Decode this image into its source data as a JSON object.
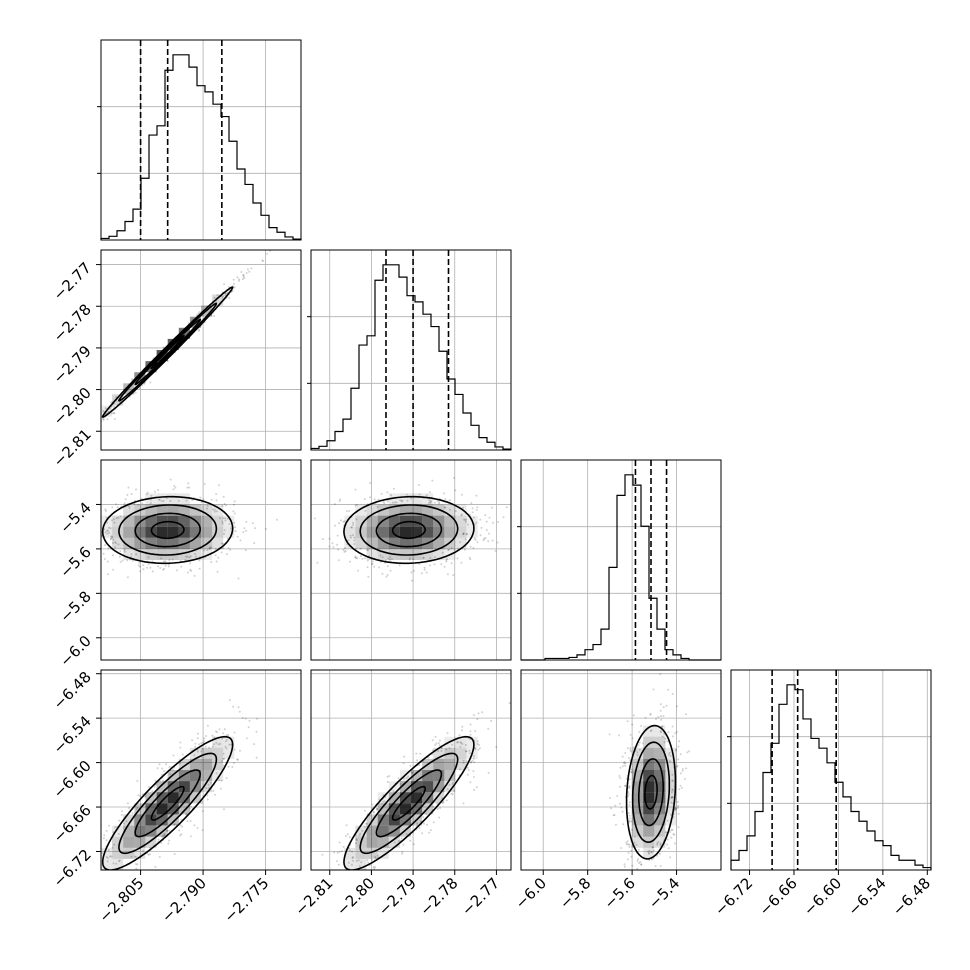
{
  "chart_data": {
    "type": "corner",
    "parameters": [
      {
        "index": 0,
        "range": [
          -2.8145,
          -2.7665
        ],
        "ticks": [
          -2.805,
          -2.79,
          -2.775
        ],
        "tick_labels": [
          "−2.805",
          "−2.790",
          "−2.775"
        ],
        "quantiles": [
          -2.805,
          -2.7985,
          -2.7855
        ],
        "histogram": [
          0.5,
          1.2,
          3,
          6,
          10,
          20,
          34,
          37,
          55,
          60,
          60,
          56,
          50,
          48,
          44,
          40,
          32,
          23,
          18,
          12,
          8,
          4,
          2.5,
          1,
          0.3
        ]
      },
      {
        "index": 1,
        "range": [
          -2.8145,
          -2.7665
        ],
        "ticks": [
          -2.81,
          -2.8,
          -2.79,
          -2.78,
          -2.77
        ],
        "tick_labels": [
          "−2.81",
          "−2.80",
          "−2.79",
          "−2.78",
          "−2.77"
        ],
        "quantiles": [
          -2.7965,
          -2.79,
          -2.7815
        ],
        "histogram": [
          0.5,
          1.2,
          3,
          6,
          10,
          20,
          34,
          37,
          55,
          60,
          60,
          56,
          50,
          48,
          44,
          40,
          32,
          23,
          18,
          12,
          8,
          4,
          2.5,
          1,
          0.3
        ]
      },
      {
        "index": 2,
        "range": [
          -6.1,
          -5.2
        ],
        "ticks": [
          -6.0,
          -5.8,
          -5.6,
          -5.4
        ],
        "tick_labels": [
          "−6.0",
          "−5.8",
          "−5.6",
          "−5.4"
        ],
        "quantiles": [
          -5.585,
          -5.515,
          -5.445
        ],
        "histogram": [
          0,
          0,
          0,
          0.3,
          0.3,
          0.3,
          0.5,
          1,
          2,
          3,
          6,
          18,
          32,
          36,
          34,
          26,
          12,
          6,
          2,
          1,
          0.3,
          0,
          0,
          0,
          0
        ]
      },
      {
        "index": 3,
        "range": [
          -6.745,
          -6.475
        ],
        "ticks": [
          -6.72,
          -6.66,
          -6.6,
          -6.54,
          -6.48
        ],
        "tick_labels": [
          "−6.72",
          "−6.66",
          "−6.60",
          "−6.54",
          "−6.48"
        ],
        "quantiles": [
          -6.6895,
          -6.655,
          -6.603
        ],
        "histogram": [
          2,
          4,
          7,
          12,
          20,
          26,
          34,
          38,
          37,
          31,
          27,
          25,
          22,
          18,
          15,
          12,
          10,
          8,
          6,
          5,
          3,
          2,
          2,
          1,
          0.5
        ]
      }
    ],
    "pairs": [
      {
        "row": 1,
        "col": 0,
        "mean": [
          -2.7985,
          -2.791
        ],
        "sd": [
          0.0078,
          0.0078
        ],
        "rho": 0.995,
        "contour_sigmas": [
          0.5,
          1.0,
          1.5,
          2.0
        ]
      },
      {
        "row": 2,
        "col": 0,
        "mean": [
          -2.7985,
          -5.515
        ],
        "sd": [
          0.0078,
          0.075
        ],
        "rho": 0.05,
        "contour_sigmas": [
          0.5,
          1.0,
          1.5,
          2.0
        ]
      },
      {
        "row": 2,
        "col": 1,
        "mean": [
          -2.791,
          -5.515
        ],
        "sd": [
          0.0078,
          0.075
        ],
        "rho": 0.05,
        "contour_sigmas": [
          0.5,
          1.0,
          1.5,
          2.0
        ]
      },
      {
        "row": 3,
        "col": 0,
        "mean": [
          -2.7985,
          -6.655
        ],
        "sd": [
          0.0078,
          0.045
        ],
        "rho": 0.88,
        "contour_sigmas": [
          0.5,
          1.0,
          1.5,
          2.0
        ]
      },
      {
        "row": 3,
        "col": 1,
        "mean": [
          -2.791,
          -6.655
        ],
        "sd": [
          0.0078,
          0.045
        ],
        "rho": 0.88,
        "contour_sigmas": [
          0.5,
          1.0,
          1.5,
          2.0
        ]
      },
      {
        "row": 3,
        "col": 2,
        "mean": [
          -5.515,
          -6.64
        ],
        "sd": [
          0.055,
          0.045
        ],
        "rho": 0.15,
        "contour_sigmas": [
          0.5,
          1.0,
          1.5,
          2.0
        ]
      }
    ],
    "grid": true,
    "title": "",
    "xlabel": "",
    "ylabel": ""
  }
}
